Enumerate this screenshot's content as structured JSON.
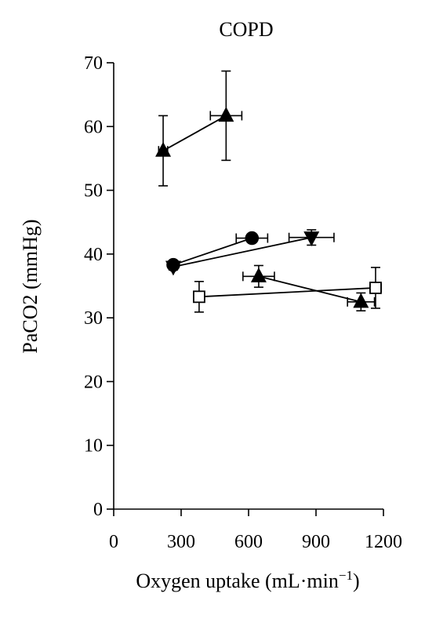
{
  "chart_data": {
    "type": "scatter",
    "title": "COPD",
    "xlabel": "Oxygen uptake (mL·min",
    "xlabel_sup": "−1",
    "xlabel_close": ")",
    "ylabel": "PaCO2 (mmHg)",
    "xlim": [
      0,
      1200
    ],
    "ylim": [
      0,
      70
    ],
    "xticks": [
      "0",
      "300",
      "600",
      "900",
      "1200"
    ],
    "xtick_values": [
      0,
      300,
      600,
      900,
      1200
    ],
    "yticks": [
      "0",
      "10",
      "20",
      "30",
      "40",
      "50",
      "60",
      "70"
    ],
    "ytick_values": [
      0,
      10,
      20,
      30,
      40,
      50,
      60,
      70
    ],
    "grid": false,
    "series": [
      {
        "marker": "triangle-up",
        "fill": "#000000",
        "points": [
          {
            "x": 220,
            "y": 56.2,
            "xerr": 20,
            "yerr": 5.5
          },
          {
            "x": 500,
            "y": 61.7,
            "xerr": 70,
            "yerr": 7.0
          }
        ]
      },
      {
        "marker": "circle",
        "fill": "#000000",
        "points": [
          {
            "x": 265,
            "y": 38.3,
            "xerr": 10,
            "yerr": 0.6
          },
          {
            "x": 615,
            "y": 42.5,
            "xerr": 70,
            "yerr": 0.4
          }
        ]
      },
      {
        "marker": "triangle-down",
        "fill": "#000000",
        "points": [
          {
            "x": 265,
            "y": 38.0,
            "xerr": 10,
            "yerr": 0.5
          },
          {
            "x": 880,
            "y": 42.6,
            "xerr": 100,
            "yerr": 1.2
          }
        ]
      },
      {
        "marker": "triangle-up",
        "fill": "#000000",
        "points": [
          {
            "x": 645,
            "y": 36.5,
            "xerr": 70,
            "yerr": 1.7
          },
          {
            "x": 1100,
            "y": 32.5,
            "xerr": 60,
            "yerr": 1.4
          }
        ]
      },
      {
        "marker": "square-open",
        "fill": "#ffffff",
        "points": [
          {
            "x": 380,
            "y": 33.3,
            "xerr": 10,
            "yerr": 2.4
          },
          {
            "x": 1165,
            "y": 34.7,
            "xerr": 25,
            "yerr": 3.2
          }
        ]
      }
    ]
  }
}
